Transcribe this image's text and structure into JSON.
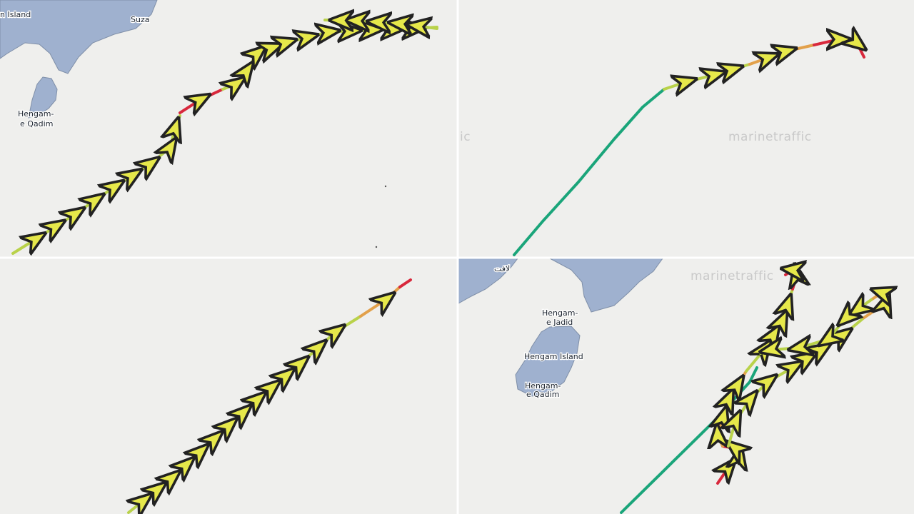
{
  "map": {
    "panels": [
      {
        "id": "top-left",
        "labels": [
          "n Island",
          "Suza",
          "Hengam-",
          "e Qadim"
        ]
      },
      {
        "id": "top-right",
        "watermark": "marinetraffic",
        "watermark_partial": "ic"
      },
      {
        "id": "bottom-left"
      },
      {
        "id": "bottom-right",
        "watermark": "marinetraffic",
        "labels": [
          "Hengam-",
          "e Jadid",
          "Hengam Island",
          "Hengam-",
          "e Qadim",
          "لافت"
        ]
      }
    ],
    "colors": {
      "water": "#efefed",
      "land": "#9fb1cf",
      "land_edge": "#7f8fa8",
      "track_slow": "#b9d24a",
      "track_mid": "#e2a04a",
      "track_stopped": "#d8283c",
      "track_fast": "#1aa57a",
      "divider": "#ffffff"
    }
  }
}
